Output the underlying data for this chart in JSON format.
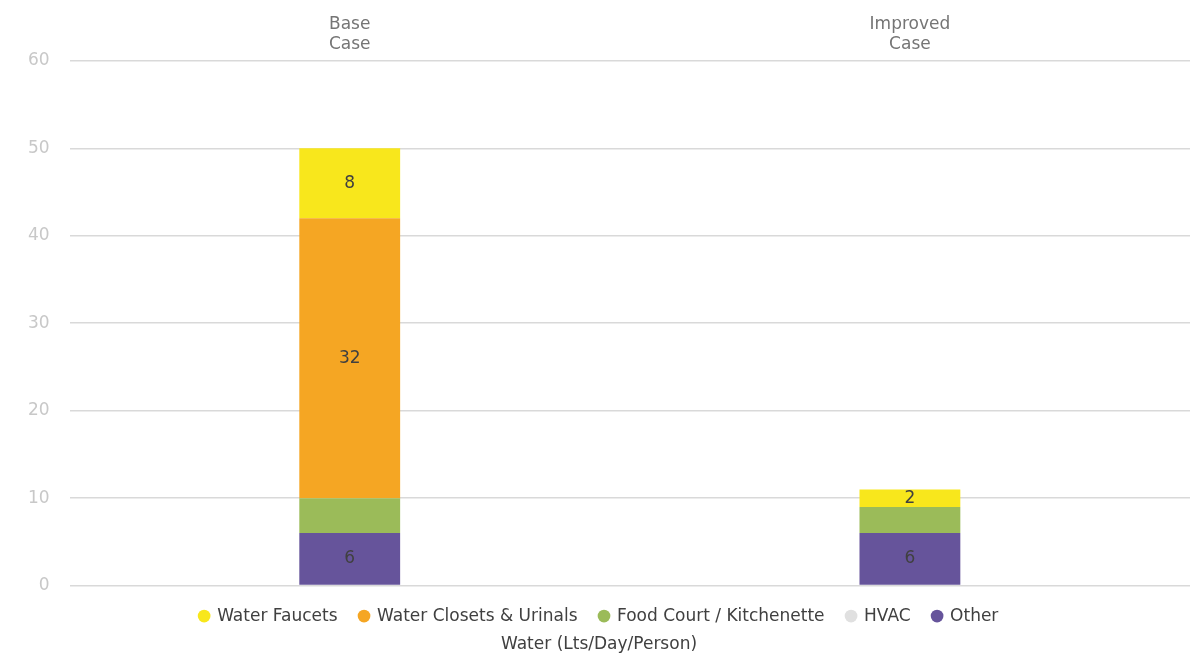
{
  "chart_data": {
    "type": "bar",
    "stacked": true,
    "xlabel": "Water (Lts/Day/Person)",
    "categories": [
      "Base Case",
      "Improved Case"
    ],
    "series": [
      {
        "name": "Other",
        "color": "#66549b",
        "values": [
          6,
          6
        ],
        "value_labels": [
          "6",
          "6"
        ]
      },
      {
        "name": "HVAC",
        "color": "#e0e0e0",
        "values": [
          0,
          0
        ]
      },
      {
        "name": "Food Court / Kitchenette",
        "color": "#9bbb59",
        "values": [
          4,
          3
        ]
      },
      {
        "name": "Water Closets & Urinals",
        "color": "#f5a623",
        "values": [
          32,
          0
        ],
        "value_labels": [
          "32",
          null
        ]
      },
      {
        "name": "Water Faucets",
        "color": "#f8e71c",
        "values": [
          8,
          2
        ],
        "value_labels": [
          "8",
          "2"
        ]
      }
    ],
    "ylim": [
      0,
      60
    ],
    "yticks": [
      0,
      10,
      20,
      30,
      40,
      50,
      60
    ],
    "grid": "y",
    "legend": "bottom"
  }
}
